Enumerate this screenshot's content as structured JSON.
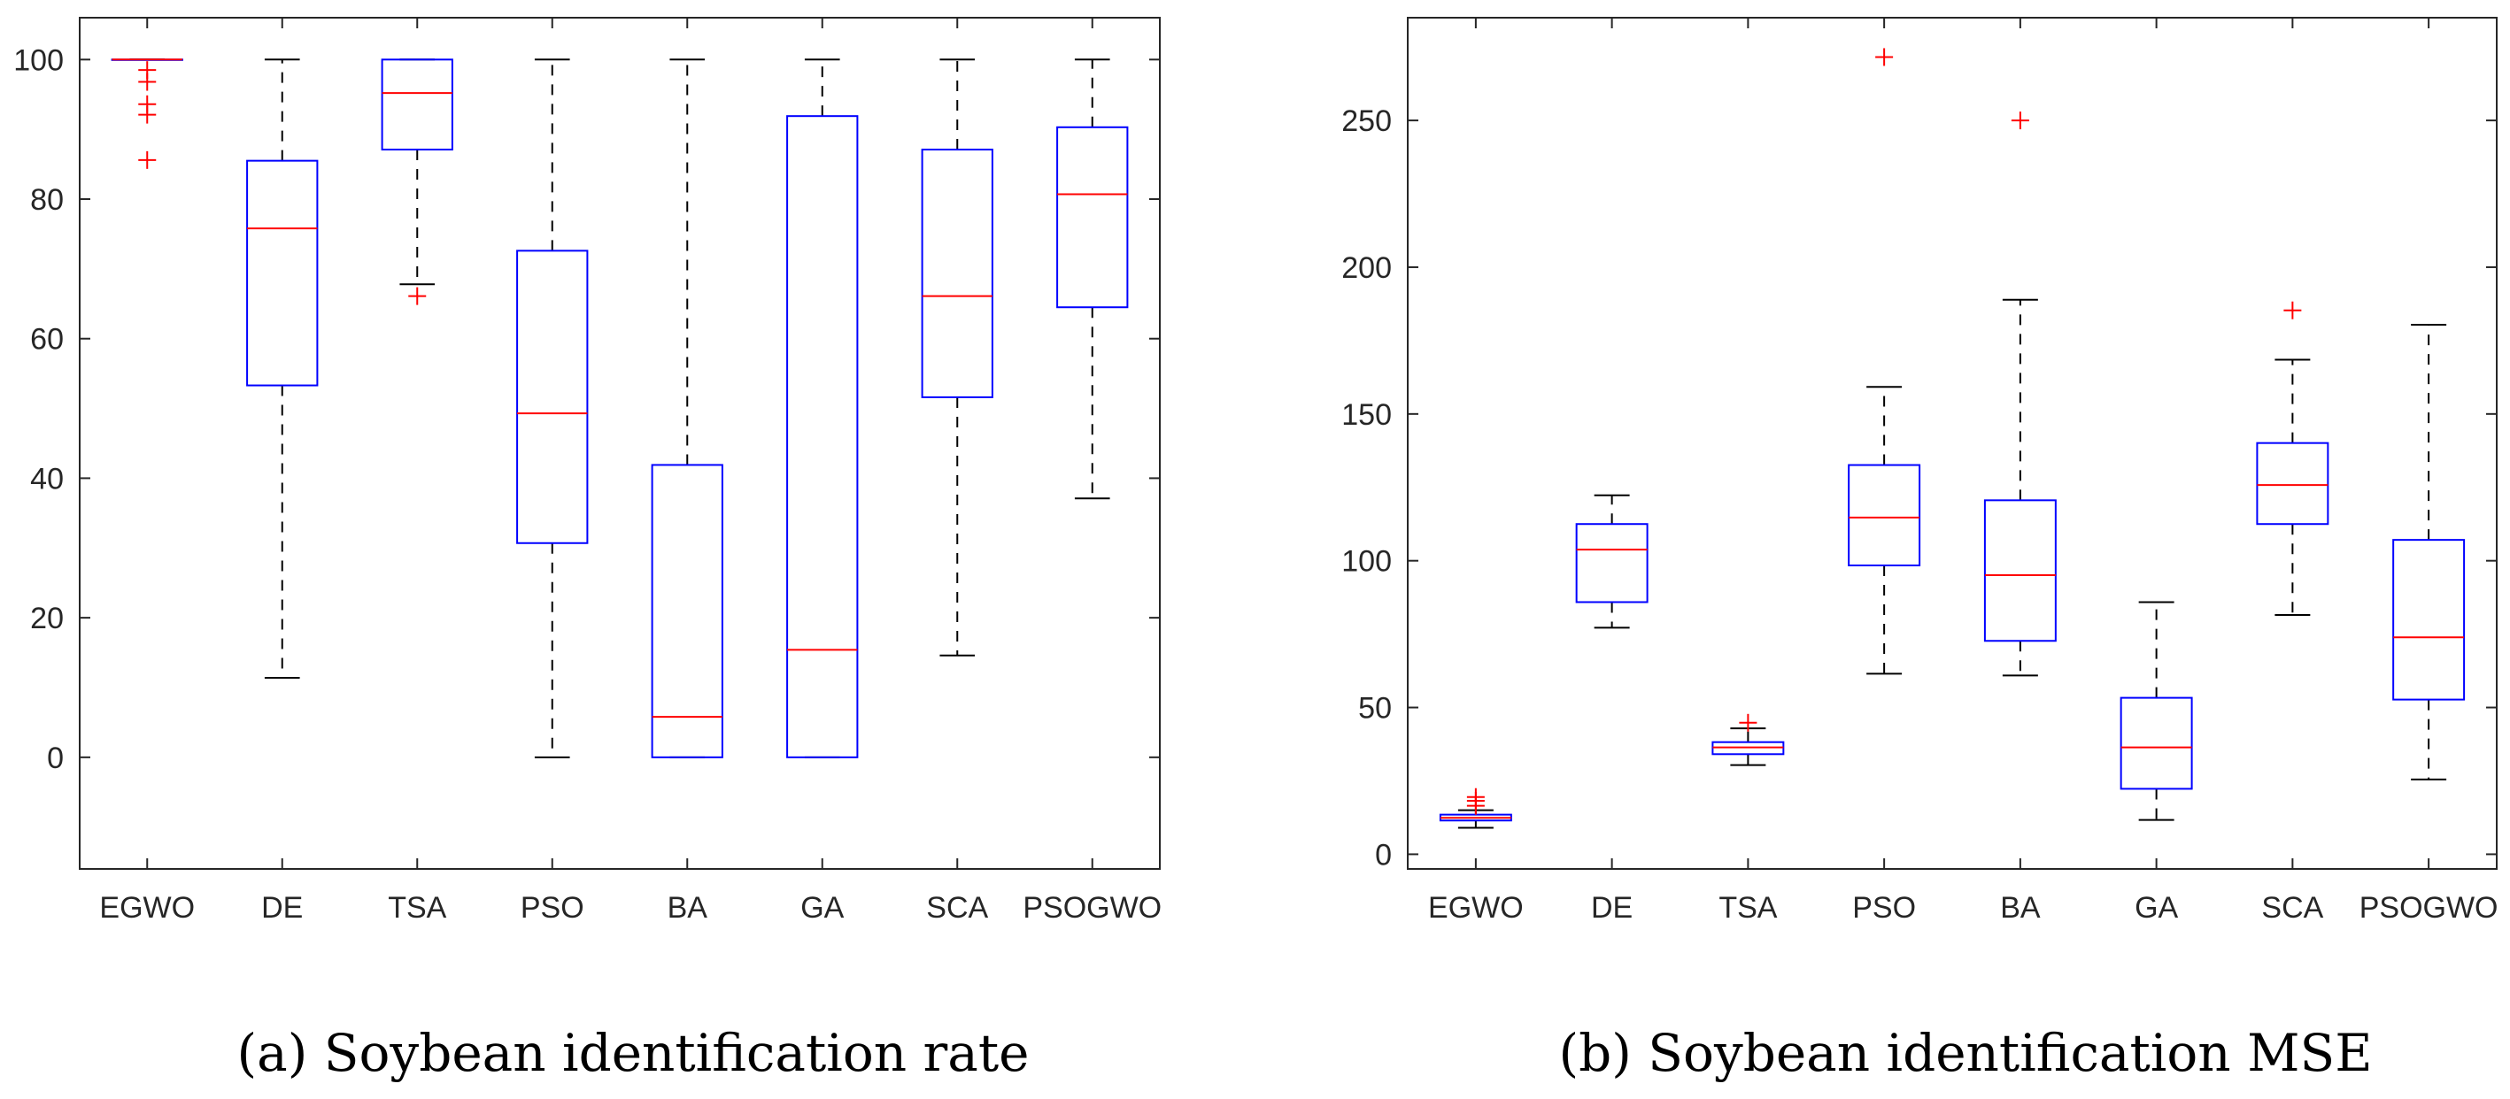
{
  "chart_data": [
    {
      "type": "box",
      "panel_label": "(a)",
      "caption": "Soybean identification rate",
      "categories": [
        "EGWO",
        "DE",
        "TSA",
        "PSO",
        "BA",
        "GA",
        "SCA",
        "PSOGWO"
      ],
      "ylim": [
        -16,
        106
      ],
      "yticks": [
        0,
        20,
        40,
        60,
        80,
        100
      ],
      "boxes": [
        {
          "q1": 100,
          "median": 100,
          "q3": 100,
          "whisker_low": 100,
          "whisker_high": 100,
          "outliers": [
            98.5,
            96.8,
            93.6,
            92.1,
            85.6
          ]
        },
        {
          "q1": 53.3,
          "median": 75.8,
          "q3": 85.5,
          "whisker_low": 11.4,
          "whisker_high": 100,
          "outliers": []
        },
        {
          "q1": 87.1,
          "median": 95.2,
          "q3": 100,
          "whisker_low": 67.8,
          "whisker_high": 100,
          "outliers": [
            66.1
          ]
        },
        {
          "q1": 30.7,
          "median": 49.3,
          "q3": 72.6,
          "whisker_low": 0,
          "whisker_high": 100,
          "outliers": []
        },
        {
          "q1": 0,
          "median": 5.8,
          "q3": 41.9,
          "whisker_low": 0,
          "whisker_high": 100,
          "outliers": []
        },
        {
          "q1": 0,
          "median": 15.4,
          "q3": 91.9,
          "whisker_low": 0,
          "whisker_high": 100,
          "outliers": []
        },
        {
          "q1": 51.6,
          "median": 66.1,
          "q3": 87.1,
          "whisker_low": 14.6,
          "whisker_high": 100,
          "outliers": []
        },
        {
          "q1": 64.5,
          "median": 80.7,
          "q3": 90.3,
          "whisker_low": 37.1,
          "whisker_high": 100,
          "outliers": []
        }
      ]
    },
    {
      "type": "box",
      "panel_label": "(b)",
      "caption": "Soybean identification MSE",
      "categories": [
        "EGWO",
        "DE",
        "TSA",
        "PSO",
        "BA",
        "GA",
        "SCA",
        "PSOGWO"
      ],
      "ylim": [
        -5,
        285
      ],
      "yticks": [
        0,
        50,
        100,
        150,
        200,
        250
      ],
      "boxes": [
        {
          "q1": 11.5,
          "median": 12.4,
          "q3": 13.5,
          "whisker_low": 9,
          "whisker_high": 15,
          "outliers": [
            16.5,
            18.2,
            19.5
          ]
        },
        {
          "q1": 85.9,
          "median": 103.8,
          "q3": 112.5,
          "whisker_low": 77.2,
          "whisker_high": 122.3,
          "outliers": []
        },
        {
          "q1": 34.1,
          "median": 36.4,
          "q3": 38.2,
          "whisker_low": 30.4,
          "whisker_high": 42.9,
          "outliers": [
            44.8
          ]
        },
        {
          "q1": 98.4,
          "median": 114.7,
          "q3": 132.6,
          "whisker_low": 61.5,
          "whisker_high": 159.2,
          "outliers": [
            271.6
          ]
        },
        {
          "q1": 72.7,
          "median": 95.1,
          "q3": 120.6,
          "whisker_low": 60.9,
          "whisker_high": 188.9,
          "outliers": [
            250
          ]
        },
        {
          "q1": 22.3,
          "median": 36.4,
          "q3": 53.3,
          "whisker_low": 11.7,
          "whisker_high": 85.9,
          "outliers": []
        },
        {
          "q1": 112.5,
          "median": 125.8,
          "q3": 140.1,
          "whisker_low": 81.5,
          "whisker_high": 168.5,
          "outliers": [
            185.3
          ]
        },
        {
          "q1": 52.7,
          "median": 73.9,
          "q3": 107.1,
          "whisker_low": 25.5,
          "whisker_high": 180.4,
          "outliers": []
        }
      ]
    }
  ]
}
